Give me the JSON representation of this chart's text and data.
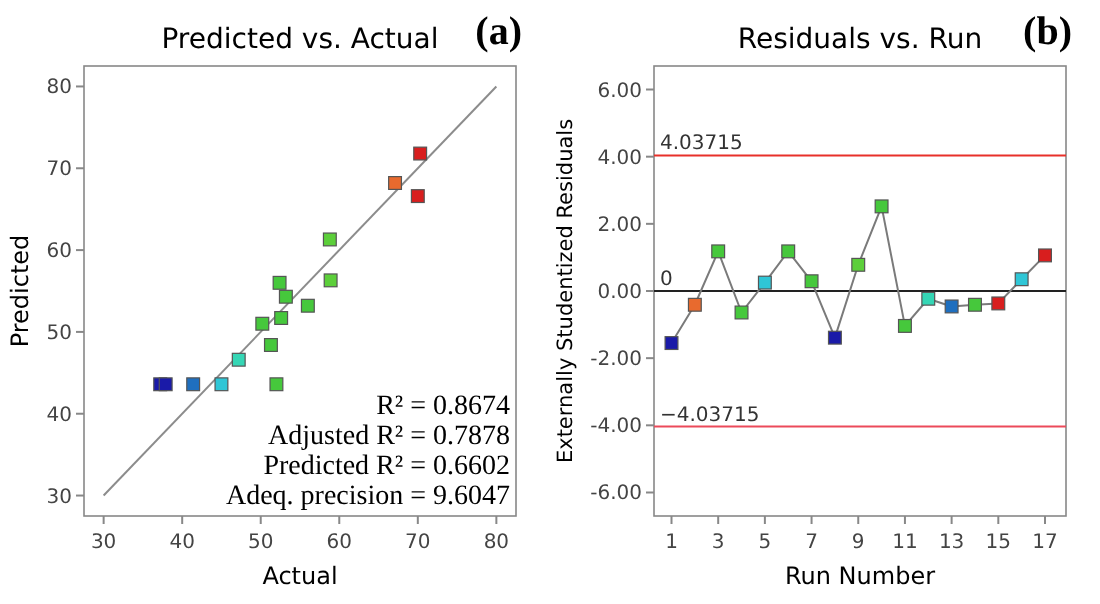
{
  "chart_data": [
    {
      "type": "scatter",
      "title": "Predicted vs. Actual",
      "xlabel": "Actual",
      "ylabel": "Predicted",
      "xlim": [
        27.5,
        82.5
      ],
      "ylim": [
        27.5,
        82.5
      ],
      "xticks": [
        30,
        40,
        50,
        60,
        70,
        80
      ],
      "yticks": [
        30,
        40,
        50,
        60,
        70,
        80
      ],
      "marker": "square",
      "grid": false,
      "annotations": [
        "(a)",
        "R² = 0.8674",
        "Adjusted R² = 0.7878",
        "Predicted R² = 0.6602",
        "Adeq. precision = 9.6047"
      ],
      "series": [
        {
          "type": "line",
          "color": "#8c8c8c",
          "x": [
            30,
            80
          ],
          "values": [
            30,
            80
          ],
          "marker": "none"
        },
        {
          "x": [
            37.2,
            37.9,
            41.4,
            45.0,
            47.2,
            52.0,
            51.3,
            50.2,
            52.6,
            52.4,
            53.2,
            56.0,
            58.8,
            58.9,
            67.1,
            70.0,
            70.3
          ],
          "values": [
            43.6,
            43.6,
            43.6,
            43.6,
            46.6,
            43.6,
            48.4,
            51.0,
            51.7,
            56.0,
            54.3,
            53.2,
            61.3,
            56.3,
            68.2,
            66.6,
            71.8
          ],
          "colors": [
            "#1a1aa8",
            "#1a1aa8",
            "#1f6fbf",
            "#2fc6d6",
            "#35d6b5",
            "#46c83c",
            "#46c83c",
            "#46c83c",
            "#46c83c",
            "#46c83c",
            "#46c83c",
            "#46c83c",
            "#5ccf3a",
            "#5ccf3a",
            "#e86a2e",
            "#d81e1e",
            "#d81e1e"
          ]
        }
      ]
    },
    {
      "type": "line",
      "title": "Residuals vs. Run",
      "xlabel": "Run Number",
      "ylabel": "Externally Studentized Residuals",
      "xlim": [
        0.25,
        17.9
      ],
      "ylim": [
        -6.7,
        6.7
      ],
      "xticks": [
        1,
        3,
        5,
        7,
        9,
        11,
        13,
        15,
        17
      ],
      "yticks": [
        {
          "value": -6,
          "label": "-6.00"
        },
        {
          "value": -4,
          "label": "-4.00"
        },
        {
          "value": -2,
          "label": "-2.00"
        },
        {
          "value": 0,
          "label": "0.00"
        },
        {
          "value": 2,
          "label": "2.00"
        },
        {
          "value": 4,
          "label": "4.00"
        },
        {
          "value": 6,
          "label": "6.00"
        }
      ],
      "marker": "square",
      "line_style": "solid",
      "grid": false,
      "annotations": [
        "(b)"
      ],
      "ref_lines": [
        {
          "axis": "y",
          "value": 4.03715,
          "label": "4.03715",
          "color": "#e8302a"
        },
        {
          "axis": "y",
          "value": 0,
          "label": "0",
          "color": "#222222"
        },
        {
          "axis": "y",
          "value": -4.03715,
          "label": "−4.03715",
          "color": "#ec4a5a"
        }
      ],
      "series": [
        {
          "color": "#7a7a7a",
          "x": [
            1,
            2,
            3,
            4,
            5,
            6,
            7,
            8,
            9,
            10,
            11,
            12,
            13,
            14,
            15,
            16,
            17
          ],
          "values": [
            -1.55,
            -0.41,
            1.18,
            -0.64,
            0.25,
            1.18,
            0.29,
            -1.39,
            0.78,
            2.52,
            -1.04,
            -0.23,
            -0.46,
            -0.41,
            -0.37,
            0.35,
            1.06
          ],
          "colors": [
            "#1a1aa8",
            "#e86a2e",
            "#46c83c",
            "#46c83c",
            "#2fc6d6",
            "#46c83c",
            "#46c83c",
            "#1a1aa8",
            "#5ccf3a",
            "#46c83c",
            "#46c83c",
            "#35d6b5",
            "#1f6fbf",
            "#46c83c",
            "#d81e1e",
            "#2fc6d6",
            "#d81e1e"
          ]
        }
      ]
    }
  ]
}
